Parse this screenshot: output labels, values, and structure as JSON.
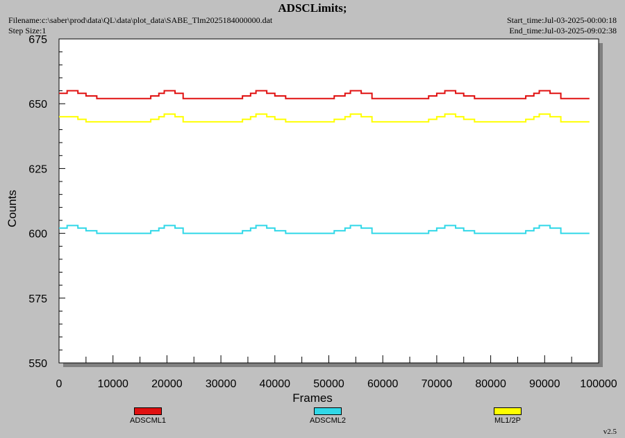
{
  "header": {
    "title": "ADSCLimits;",
    "filename": "Filename:c:\\saber\\prod\\data\\QL\\data\\plot_data\\SABE_Tlm2025184000000.dat",
    "step_size": "Step Size:1",
    "start_time": "Start_time:Jul-03-2025-00:00:18",
    "end_time": "End_time:Jul-03-2025-09:02:38"
  },
  "footer": {
    "version": "v2.5"
  },
  "chart_data": {
    "type": "line",
    "xlabel": "Frames",
    "ylabel": "Counts",
    "xlim": [
      0,
      100000
    ],
    "ylim": [
      550,
      675
    ],
    "x_ticks": [
      0,
      10000,
      20000,
      30000,
      40000,
      50000,
      60000,
      70000,
      80000,
      90000,
      100000
    ],
    "y_ticks": [
      550,
      575,
      600,
      625,
      650,
      675
    ],
    "x_end": 98300,
    "series": [
      {
        "name": "ADSCML1",
        "color": "#e01010",
        "points": [
          [
            0,
            654
          ],
          [
            1500,
            655
          ],
          [
            3500,
            654
          ],
          [
            5000,
            653
          ],
          [
            7000,
            652
          ],
          [
            14000,
            652
          ],
          [
            17000,
            653
          ],
          [
            18500,
            654
          ],
          [
            19500,
            655
          ],
          [
            21500,
            654
          ],
          [
            23000,
            652
          ],
          [
            32000,
            652
          ],
          [
            34000,
            653
          ],
          [
            35500,
            654
          ],
          [
            36500,
            655
          ],
          [
            38500,
            654
          ],
          [
            40000,
            653
          ],
          [
            42000,
            652
          ],
          [
            49000,
            652
          ],
          [
            51000,
            653
          ],
          [
            53000,
            654
          ],
          [
            54000,
            655
          ],
          [
            56000,
            654
          ],
          [
            58000,
            652
          ],
          [
            66500,
            652
          ],
          [
            68500,
            653
          ],
          [
            70000,
            654
          ],
          [
            71500,
            655
          ],
          [
            73500,
            654
          ],
          [
            75000,
            653
          ],
          [
            77000,
            652
          ],
          [
            84500,
            652
          ],
          [
            86500,
            653
          ],
          [
            88000,
            654
          ],
          [
            89000,
            655
          ],
          [
            91000,
            654
          ],
          [
            93000,
            652
          ],
          [
            98300,
            652
          ]
        ]
      },
      {
        "name": "ADSCML2",
        "color": "#30d8e8",
        "points": [
          [
            0,
            602
          ],
          [
            1500,
            603
          ],
          [
            3500,
            602
          ],
          [
            5000,
            601
          ],
          [
            7000,
            600
          ],
          [
            14000,
            600
          ],
          [
            17000,
            601
          ],
          [
            18500,
            602
          ],
          [
            19500,
            603
          ],
          [
            21500,
            602
          ],
          [
            23000,
            600
          ],
          [
            32000,
            600
          ],
          [
            34000,
            601
          ],
          [
            35500,
            602
          ],
          [
            36500,
            603
          ],
          [
            38500,
            602
          ],
          [
            40000,
            601
          ],
          [
            42000,
            600
          ],
          [
            49000,
            600
          ],
          [
            51000,
            601
          ],
          [
            53000,
            602
          ],
          [
            54000,
            603
          ],
          [
            56000,
            602
          ],
          [
            58000,
            600
          ],
          [
            66500,
            600
          ],
          [
            68500,
            601
          ],
          [
            70000,
            602
          ],
          [
            71500,
            603
          ],
          [
            73500,
            602
          ],
          [
            75000,
            601
          ],
          [
            77000,
            600
          ],
          [
            84500,
            600
          ],
          [
            86500,
            601
          ],
          [
            88000,
            602
          ],
          [
            89000,
            603
          ],
          [
            91000,
            602
          ],
          [
            93000,
            600
          ],
          [
            98300,
            600
          ]
        ]
      },
      {
        "name": "ML1/2P",
        "color": "#ffff00",
        "points": [
          [
            0,
            645
          ],
          [
            2000,
            645
          ],
          [
            3500,
            644
          ],
          [
            5000,
            643
          ],
          [
            14000,
            643
          ],
          [
            17000,
            644
          ],
          [
            18500,
            645
          ],
          [
            19500,
            646
          ],
          [
            21500,
            645
          ],
          [
            23000,
            643
          ],
          [
            32000,
            643
          ],
          [
            34000,
            644
          ],
          [
            35500,
            645
          ],
          [
            36500,
            646
          ],
          [
            38500,
            645
          ],
          [
            40000,
            644
          ],
          [
            42000,
            643
          ],
          [
            49000,
            643
          ],
          [
            51000,
            644
          ],
          [
            53000,
            645
          ],
          [
            54000,
            646
          ],
          [
            56000,
            645
          ],
          [
            58000,
            643
          ],
          [
            66500,
            643
          ],
          [
            68500,
            644
          ],
          [
            70000,
            645
          ],
          [
            71500,
            646
          ],
          [
            73500,
            645
          ],
          [
            75000,
            644
          ],
          [
            77000,
            643
          ],
          [
            84500,
            643
          ],
          [
            86500,
            644
          ],
          [
            88000,
            645
          ],
          [
            89000,
            646
          ],
          [
            91000,
            645
          ],
          [
            93000,
            643
          ],
          [
            98300,
            643
          ]
        ]
      }
    ],
    "legend": {
      "placement": "bottom",
      "entries": [
        "ADSCML1",
        "ADSCML2",
        "ML1/2P"
      ]
    },
    "grid": false
  }
}
